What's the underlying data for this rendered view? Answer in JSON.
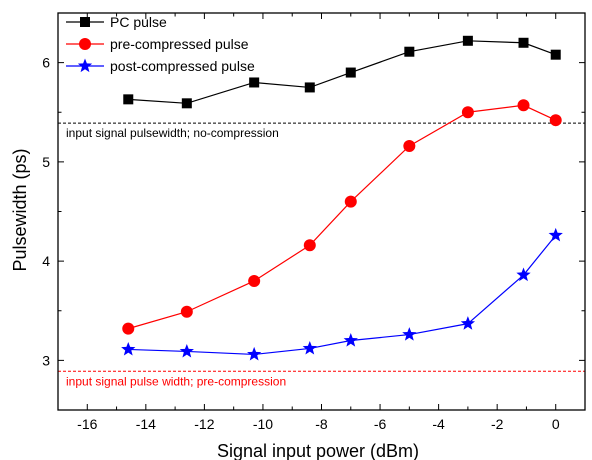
{
  "chart_data": {
    "type": "line",
    "title": "",
    "xlabel": "Signal input power (dBm)",
    "ylabel": "Pulsewidth (ps)",
    "xlim": [
      -17,
      1
    ],
    "ylim": [
      2.5,
      6.5
    ],
    "xticks": [
      -16,
      -14,
      -12,
      -10,
      -8,
      -6,
      -4,
      -2,
      0
    ],
    "yticks": [
      3,
      4,
      5,
      6
    ],
    "legend_position": "top-left",
    "grid": false,
    "series": [
      {
        "name": "PC pulse",
        "color": "#000000",
        "marker": "square",
        "x": [
          -14.6,
          -12.6,
          -10.3,
          -8.4,
          -7.0,
          -5.0,
          -3.0,
          -1.1,
          0.0
        ],
        "y": [
          5.63,
          5.59,
          5.8,
          5.75,
          5.9,
          6.11,
          6.22,
          6.2,
          6.08
        ]
      },
      {
        "name": "pre-compressed pulse",
        "color": "#ff0000",
        "marker": "circle",
        "x": [
          -14.6,
          -12.6,
          -10.3,
          -8.4,
          -7.0,
          -5.0,
          -3.0,
          -1.1,
          0.0
        ],
        "y": [
          3.32,
          3.49,
          3.8,
          4.16,
          4.6,
          5.16,
          5.5,
          5.57,
          5.42
        ]
      },
      {
        "name": "post-compressed pulse",
        "color": "#0000ff",
        "marker": "star",
        "x": [
          -14.6,
          -12.6,
          -10.3,
          -8.4,
          -7.0,
          -5.0,
          -3.0,
          -1.1,
          0.0
        ],
        "y": [
          3.11,
          3.09,
          3.06,
          3.12,
          3.2,
          3.26,
          3.37,
          3.86,
          4.26
        ]
      }
    ],
    "reference_lines": [
      {
        "label": "input signal pulsewidth; no-compression",
        "y": 5.39,
        "color": "#000000"
      },
      {
        "label": "input signal pulse width; pre-compression",
        "y": 2.89,
        "color": "#ff0000"
      }
    ]
  }
}
